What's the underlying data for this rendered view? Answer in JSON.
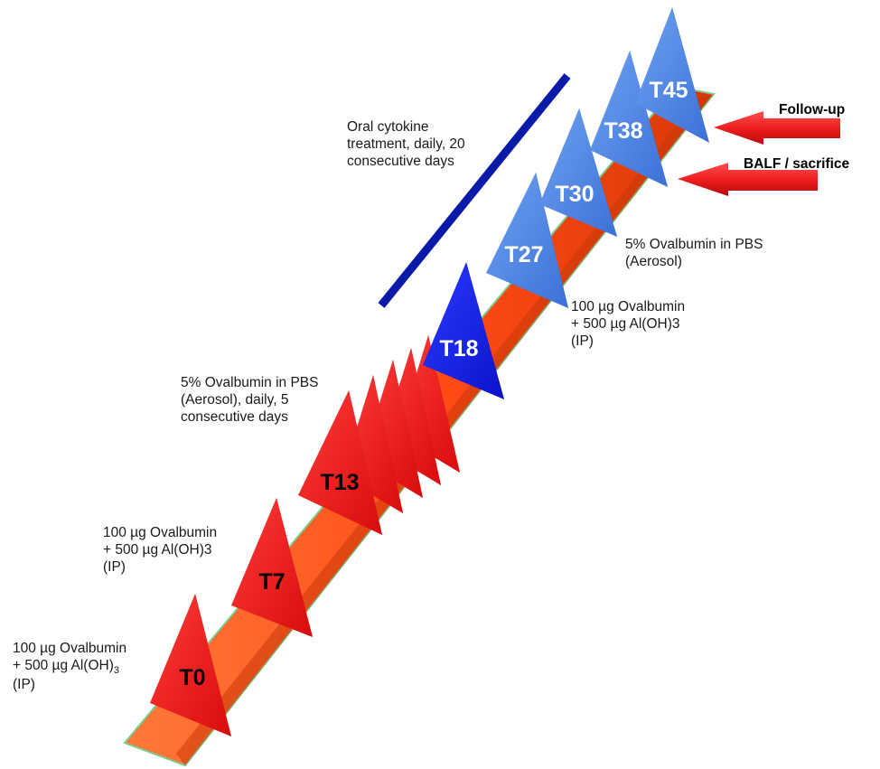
{
  "colors": {
    "band": "#ff5a1e",
    "band_edge": "#c83a0a",
    "band_outline": "#7fc98a",
    "red_marker": "#ee1e1e",
    "red_marker_dark": "#a80808",
    "blue_marker": "#0a18e0",
    "blue_marker_dark": "#040b80",
    "light_blue_marker": "#4a82e6",
    "light_blue_marker_dark": "#2650a8",
    "treatment_bar": "#0a1aa8",
    "arrow_red": "#ee1e1e"
  },
  "timepoints": {
    "t0": "T0",
    "t7": "T7",
    "t13": "T13",
    "t18": "T18",
    "t27": "T27",
    "t30": "T30",
    "t38": "T38",
    "t45": "T45"
  },
  "annotations": {
    "t0": {
      "line1": "100 µg Ovalbumin",
      "line2_main": "+ 500 µg Al(OH)",
      "line2_sub": "3",
      "line3": "(IP)"
    },
    "t7": {
      "line1": "100 µg Ovalbumin",
      "line2": "+ 500 µg Al(OH)3",
      "line3": "(IP)"
    },
    "aerosol_series": {
      "line1": "5% Ovalbumin in PBS",
      "line2": "(Aerosol), daily, 5",
      "line3": "consecutive days"
    },
    "t18": {
      "line1": "100 µg Ovalbumin",
      "line2": "+ 500 µg Al(OH)3",
      "line3": "(IP)"
    },
    "t27": {
      "line1": "5% Ovalbumin in PBS",
      "line2": "(Aerosol)"
    },
    "cytokine": {
      "line1": "Oral cytokine",
      "line2": "treatment, daily, 20",
      "line3": "consecutive days"
    }
  },
  "arrows": {
    "follow_up": "Follow-up",
    "balf_sacrifice": "BALF / sacrifice"
  }
}
